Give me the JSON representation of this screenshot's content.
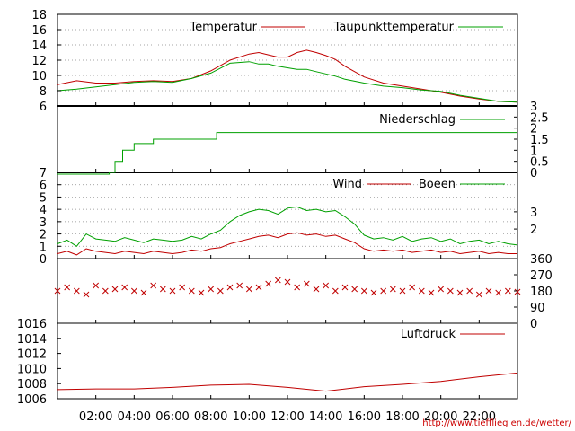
{
  "source_url": "http://www.tiefflieg en.de/wetter/",
  "colors": {
    "red": "#c00000",
    "green": "#00a000",
    "frame": "#000000"
  },
  "time_axis": {
    "tick_labels": [
      "02:00",
      "04:00",
      "06:00",
      "08:00",
      "10:00",
      "12:00",
      "14:00",
      "16:00",
      "18:00",
      "20:00",
      "22:00"
    ]
  },
  "chart_data": [
    {
      "type": "line",
      "panel": "temperature",
      "ylim": [
        6,
        18
      ],
      "yticks": [
        6,
        8,
        10,
        12,
        14,
        16,
        18
      ],
      "legend_position": "top-right",
      "x": [
        0,
        1,
        2,
        3,
        4,
        5,
        6,
        7,
        8,
        9,
        10,
        10.5,
        11,
        11.5,
        12,
        12.5,
        13,
        13.5,
        14,
        14.5,
        15,
        16,
        17,
        18,
        19,
        20,
        21,
        22,
        23,
        24
      ],
      "series": [
        {
          "name": "Temperatur",
          "color": "red",
          "values": [
            8.8,
            9.3,
            9.0,
            9.0,
            9.2,
            9.3,
            9.2,
            9.6,
            10.6,
            12.0,
            12.8,
            13.0,
            12.7,
            12.4,
            12.4,
            13.0,
            13.3,
            13.0,
            12.6,
            12.1,
            11.2,
            9.8,
            9.0,
            8.6,
            8.2,
            7.8,
            7.3,
            6.9,
            6.6,
            6.5
          ]
        },
        {
          "name": "Taupunkttemperatur",
          "color": "green",
          "values": [
            8.0,
            8.2,
            8.5,
            8.8,
            9.1,
            9.2,
            9.1,
            9.6,
            10.3,
            11.6,
            11.8,
            11.5,
            11.5,
            11.2,
            11.0,
            10.8,
            10.8,
            10.5,
            10.2,
            9.9,
            9.5,
            9.0,
            8.6,
            8.4,
            8.1,
            7.9,
            7.4,
            7.0,
            6.6,
            6.5
          ]
        }
      ]
    },
    {
      "type": "line",
      "panel": "precipitation",
      "ylim": [
        0,
        3
      ],
      "yticks_right": [
        "0",
        "0.5",
        "1",
        "1.5",
        "2",
        "2.5",
        "3"
      ],
      "legend_position": "top-right",
      "series": [
        {
          "name": "Niederschlag",
          "color": "green",
          "steps": [
            [
              0,
              -1
            ],
            [
              2.7,
              -1
            ],
            [
              2.7,
              0
            ],
            [
              3.0,
              0
            ],
            [
              3.0,
              0.5
            ],
            [
              3.4,
              0.5
            ],
            [
              3.4,
              1
            ],
            [
              4.0,
              1
            ],
            [
              4.0,
              1.3
            ],
            [
              5.0,
              1.3
            ],
            [
              5.0,
              1.5
            ],
            [
              8.3,
              1.5
            ],
            [
              8.3,
              1.8
            ],
            [
              24,
              1.8
            ]
          ]
        }
      ]
    },
    {
      "type": "line",
      "panel": "wind",
      "ylim": [
        0,
        7
      ],
      "yticks": [
        0,
        1,
        2,
        3,
        4,
        5,
        6,
        7
      ],
      "yticks_right": [
        "2",
        "3"
      ],
      "legend_position": "top-right",
      "x": [
        0,
        0.5,
        1,
        1.5,
        2,
        2.5,
        3,
        3.5,
        4,
        4.5,
        5,
        5.5,
        6,
        6.5,
        7,
        7.5,
        8,
        8.5,
        9,
        9.5,
        10,
        10.5,
        11,
        11.5,
        12,
        12.5,
        13,
        13.5,
        14,
        14.5,
        15,
        15.5,
        16,
        16.5,
        17,
        17.5,
        18,
        18.5,
        19,
        19.5,
        20,
        20.5,
        21,
        21.5,
        22,
        22.5,
        23,
        23.5,
        24
      ],
      "series": [
        {
          "name": "Wind",
          "color": "red",
          "values": [
            0.4,
            0.6,
            0.3,
            0.8,
            0.6,
            0.5,
            0.4,
            0.6,
            0.5,
            0.4,
            0.6,
            0.5,
            0.4,
            0.5,
            0.7,
            0.6,
            0.8,
            0.9,
            1.2,
            1.4,
            1.6,
            1.8,
            1.9,
            1.7,
            2.0,
            2.1,
            1.9,
            2.0,
            1.8,
            1.9,
            1.6,
            1.3,
            0.8,
            0.6,
            0.7,
            0.6,
            0.7,
            0.5,
            0.6,
            0.7,
            0.5,
            0.6,
            0.4,
            0.5,
            0.6,
            0.4,
            0.5,
            0.4,
            0.4
          ]
        },
        {
          "name": "Boeen",
          "color": "green",
          "values": [
            1.2,
            1.5,
            1.0,
            2.0,
            1.6,
            1.5,
            1.4,
            1.7,
            1.5,
            1.3,
            1.6,
            1.5,
            1.4,
            1.5,
            1.8,
            1.6,
            2.0,
            2.3,
            3.0,
            3.5,
            3.8,
            4.0,
            3.9,
            3.6,
            4.1,
            4.2,
            3.9,
            4.0,
            3.8,
            3.9,
            3.4,
            2.8,
            1.9,
            1.6,
            1.7,
            1.5,
            1.8,
            1.4,
            1.6,
            1.7,
            1.4,
            1.6,
            1.2,
            1.4,
            1.5,
            1.2,
            1.4,
            1.2,
            1.1
          ]
        }
      ]
    },
    {
      "type": "scatter",
      "panel": "wind_direction",
      "ylim": [
        0,
        360
      ],
      "yticks_right": [
        "0",
        "90",
        "180",
        "270",
        "360"
      ],
      "series": [
        {
          "name": "",
          "color": "red",
          "values": [
            180,
            200,
            180,
            160,
            210,
            180,
            190,
            200,
            180,
            170,
            210,
            190,
            180,
            200,
            180,
            170,
            190,
            180,
            200,
            210,
            190,
            200,
            220,
            240,
            230,
            200,
            220,
            190,
            210,
            180,
            200,
            190,
            180,
            170,
            180,
            190,
            180,
            200,
            180,
            170,
            190,
            180,
            170,
            180,
            160,
            180,
            170,
            180,
            175
          ]
        }
      ]
    },
    {
      "type": "line",
      "panel": "pressure",
      "ylim": [
        1006,
        1016
      ],
      "yticks": [
        1006,
        1008,
        1010,
        1012,
        1014,
        1016
      ],
      "legend_position": "top-right",
      "x": [
        0,
        2,
        4,
        6,
        8,
        10,
        12,
        14,
        16,
        18,
        20,
        22,
        24
      ],
      "series": [
        {
          "name": "Luftdruck",
          "color": "red",
          "values": [
            1007.2,
            1007.3,
            1007.3,
            1007.5,
            1007.8,
            1007.9,
            1007.5,
            1007.0,
            1007.6,
            1007.9,
            1008.3,
            1008.9,
            1009.4
          ]
        }
      ]
    }
  ]
}
